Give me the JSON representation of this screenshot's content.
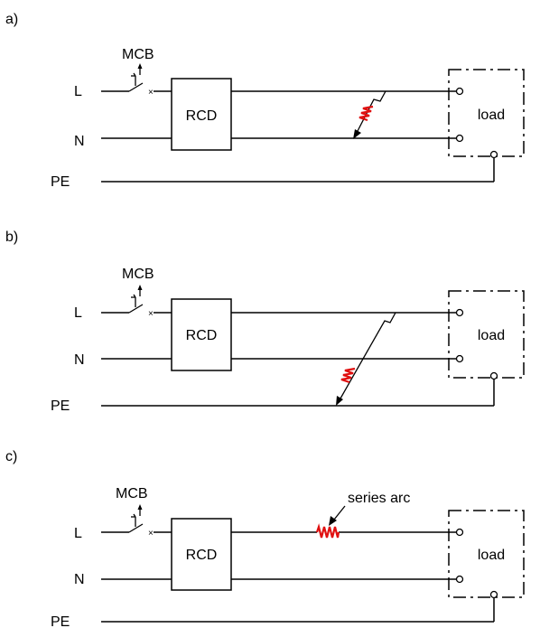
{
  "panels": [
    {
      "id": "a",
      "label": "a)",
      "mcb_label": "MCB",
      "line_labels": [
        "L",
        "N",
        "PE"
      ],
      "rcd_label": "RCD",
      "load_label": "load",
      "fault": "line-to-neutral parallel arc"
    },
    {
      "id": "b",
      "label": "b)",
      "mcb_label": "MCB",
      "line_labels": [
        "L",
        "N",
        "PE"
      ],
      "rcd_label": "RCD",
      "load_label": "load",
      "fault": "line-to-earth parallel arc"
    },
    {
      "id": "c",
      "label": "c)",
      "mcb_label": "MCB",
      "line_labels": [
        "L",
        "N",
        "PE"
      ],
      "rcd_label": "RCD",
      "load_label": "load",
      "fault": "series arc",
      "arc_label": "series arc"
    }
  ],
  "colors": {
    "wire": "#000000",
    "arc": "#e01010",
    "background": "#ffffff"
  }
}
